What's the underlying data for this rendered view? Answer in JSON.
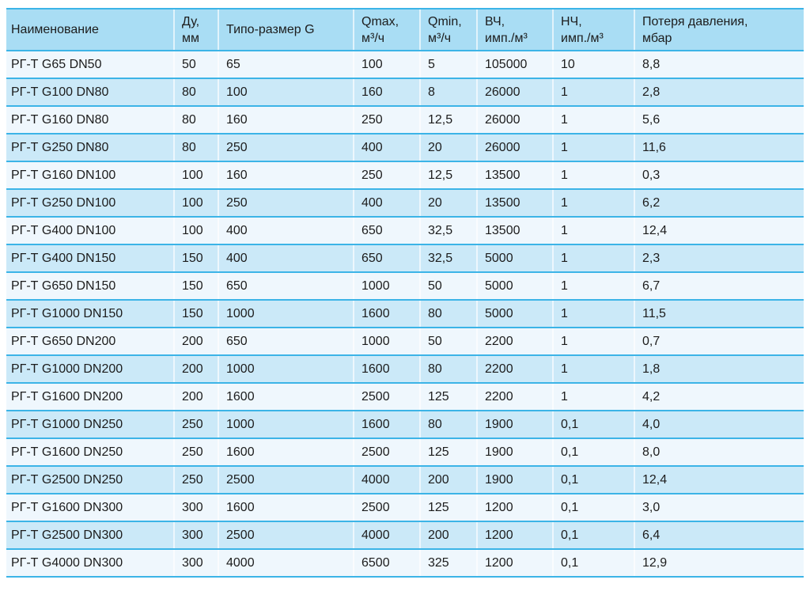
{
  "colors": {
    "header_bg": "#a9ddf4",
    "row_light": "#eff7fd",
    "row_blue": "#cbe9f8",
    "separator_line": "#3cb4e7",
    "column_divider": "#ffffff",
    "text": "#1c1c1c",
    "page_bg": "#ffffff"
  },
  "table": {
    "columns": [
      "Наименование",
      "Ду,\nмм",
      "Типо-размер G",
      "Qmax,\nм³/ч",
      "Qmin,\nм³/ч",
      "ВЧ,\nимп./м³",
      "НЧ,\nимп./м³",
      "Потеря давления,\nмбар"
    ],
    "rows": [
      [
        "РГ-Т G65 DN50",
        "50",
        "65",
        "100",
        "5",
        "105000",
        "10",
        "8,8"
      ],
      [
        "РГ-Т G100 DN80",
        "80",
        "100",
        "160",
        "8",
        "26000",
        "1",
        "2,8"
      ],
      [
        "РГ-Т G160 DN80",
        "80",
        "160",
        "250",
        "12,5",
        "26000",
        "1",
        "5,6"
      ],
      [
        "РГ-Т G250 DN80",
        "80",
        "250",
        "400",
        "20",
        "26000",
        "1",
        "11,6"
      ],
      [
        "РГ-Т G160 DN100",
        "100",
        "160",
        "250",
        "12,5",
        "13500",
        "1",
        "0,3"
      ],
      [
        "РГ-Т G250 DN100",
        "100",
        "250",
        "400",
        "20",
        "13500",
        "1",
        "6,2"
      ],
      [
        "РГ-Т G400 DN100",
        "100",
        "400",
        "650",
        "32,5",
        "13500",
        "1",
        "12,4"
      ],
      [
        "РГ-Т G400 DN150",
        "150",
        "400",
        "650",
        "32,5",
        "5000",
        "1",
        "2,3"
      ],
      [
        "РГ-Т G650 DN150",
        "150",
        "650",
        "1000",
        "50",
        "5000",
        "1",
        "6,7"
      ],
      [
        "РГ-Т G1000 DN150",
        "150",
        "1000",
        "1600",
        "80",
        "5000",
        "1",
        "11,5"
      ],
      [
        "РГ-Т G650 DN200",
        "200",
        "650",
        "1000",
        "50",
        "2200",
        "1",
        "0,7"
      ],
      [
        "РГ-Т G1000 DN200",
        "200",
        "1000",
        "1600",
        "80",
        "2200",
        "1",
        "1,8"
      ],
      [
        "РГ-Т G1600 DN200",
        "200",
        "1600",
        "2500",
        "125",
        "2200",
        "1",
        "4,2"
      ],
      [
        "РГ-Т G1000 DN250",
        "250",
        "1000",
        "1600",
        "80",
        "1900",
        "0,1",
        "4,0"
      ],
      [
        "РГ-Т G1600 DN250",
        "250",
        "1600",
        "2500",
        "125",
        "1900",
        "0,1",
        "8,0"
      ],
      [
        "РГ-Т G2500 DN250",
        "250",
        "2500",
        "4000",
        "200",
        "1900",
        "0,1",
        "12,4"
      ],
      [
        "РГ-Т G1600 DN300",
        "300",
        "1600",
        "2500",
        "125",
        "1200",
        "0,1",
        "3,0"
      ],
      [
        "РГ-Т G2500 DN300",
        "300",
        "2500",
        "4000",
        "200",
        "1200",
        "0,1",
        "6,4"
      ],
      [
        "РГ-Т G4000 DN300",
        "300",
        "4000",
        "6500",
        "325",
        "1200",
        "0,1",
        "12,9"
      ]
    ]
  }
}
